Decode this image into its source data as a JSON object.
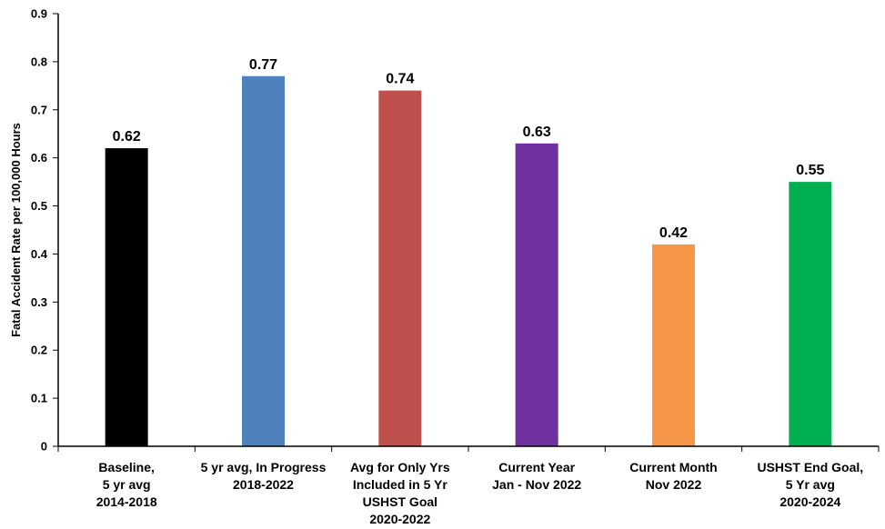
{
  "chart_data": {
    "type": "bar",
    "title": "",
    "xlabel": "",
    "ylabel": "Fatal Accident Rate per 100,000 Hours",
    "ylim": [
      0,
      0.9
    ],
    "yticks": [
      "0",
      "0.1",
      "0.2",
      "0.3",
      "0.4",
      "0.5",
      "0.6",
      "0.7",
      "0.8",
      "0.9"
    ],
    "grid": false,
    "categories": [
      [
        "Baseline,",
        "5 yr avg",
        "2014-2018"
      ],
      [
        "5 yr avg, In Progress",
        "2018-2022"
      ],
      [
        "Avg for Only Yrs",
        "Included in 5 Yr",
        "USHST Goal",
        "2020-2022"
      ],
      [
        "Current Year",
        "Jan - Nov 2022"
      ],
      [
        "Current Month",
        "Nov 2022"
      ],
      [
        "USHST End Goal,",
        "5 Yr avg",
        "2020-2024"
      ]
    ],
    "values": [
      0.62,
      0.77,
      0.74,
      0.63,
      0.42,
      0.55
    ],
    "data_labels": [
      "0.62",
      "0.77",
      "0.74",
      "0.63",
      "0.42",
      "0.55"
    ],
    "colors": [
      "#000000",
      "#4f81bd",
      "#c0504d",
      "#7030a0",
      "#f79646",
      "#00b050"
    ]
  }
}
